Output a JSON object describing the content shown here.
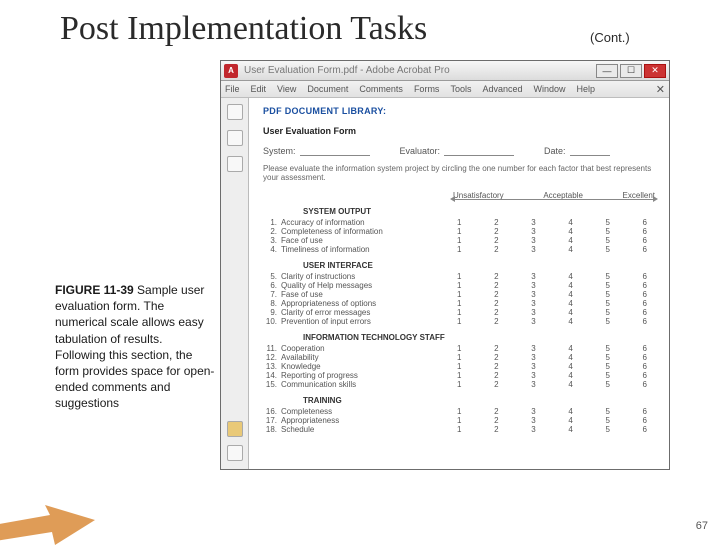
{
  "slide": {
    "title": "Post Implementation Tasks",
    "cont": "(Cont.)",
    "page_number": "67"
  },
  "caption": {
    "figure_label": "FIGURE 11-39",
    "text": " Sample user evaluation form. The numerical scale allows easy tabulation of results. Following this section, the form provides space for open-ended comments and suggestions"
  },
  "acrobat": {
    "title": "User Evaluation Form.pdf - Adobe Acrobat Pro",
    "menus": [
      "File",
      "Edit",
      "View",
      "Document",
      "Comments",
      "Forms",
      "Tools",
      "Advanced",
      "Window",
      "Help"
    ]
  },
  "form": {
    "library": "PDF DOCUMENT LIBRARY:",
    "form_title": "User Evaluation Form",
    "fields": {
      "system": "System:",
      "evaluator": "Evaluator:",
      "date": "Date:"
    },
    "intro": "Please evaluate the information system project by circling the one number for each factor that best represents your assessment.",
    "scale_labels": [
      "Unsatisfactory",
      "Acceptable",
      "Excellent"
    ],
    "values": [
      "1",
      "2",
      "3",
      "4",
      "5",
      "6"
    ],
    "sections": [
      {
        "name": "SYSTEM OUTPUT",
        "start": 1,
        "items": [
          "Accuracy of information",
          "Completeness of information",
          "Face of use",
          "Timeliness of information"
        ]
      },
      {
        "name": "USER INTERFACE",
        "start": 5,
        "items": [
          "Clarity of instructions",
          "Quality of Help messages",
          "Fase of use",
          "Appropriateness of options",
          "Clarity of error messages",
          "Prevention of input errors"
        ]
      },
      {
        "name": "INFORMATION TECHNOLOGY STAFF",
        "start": 11,
        "items": [
          "Cooperation",
          "Availability",
          "Knowledge",
          "Reporting of progress",
          "Communication skills"
        ]
      },
      {
        "name": "TRAINING",
        "start": 16,
        "items": [
          "Completeness",
          "Appropriateness",
          "Schedule"
        ]
      }
    ]
  },
  "colors": {
    "title": "#2a2a2a",
    "lib_blue": "#1a4fa0",
    "close_red": "#c33",
    "arrow_fill": "#d98b3a"
  }
}
